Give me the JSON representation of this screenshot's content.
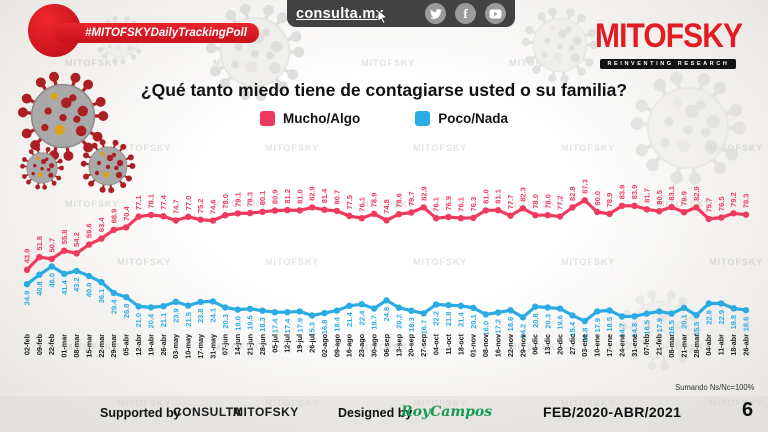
{
  "watermark": "MITOFSKY",
  "header": {
    "hashtag": "#MITOFSKYDailyTrackingPoll",
    "site": "consulta.mx",
    "logo": {
      "text": "MITOFSKY",
      "tagline": "REINVENTING RESEARCH"
    }
  },
  "chart_data": {
    "type": "line",
    "title": "¿Qué tanto miedo tiene de contagiarse usted o su familia?",
    "note": "Sumando Ns/Nc=100%",
    "ylim": [
      0,
      100
    ],
    "grid": false,
    "axes_visible": false,
    "legend_position": "top",
    "categories": [
      "02-feb",
      "09-feb",
      "22-feb",
      "01-mar",
      "08-mar",
      "15-mar",
      "22-mar",
      "29-mar",
      "05-abr",
      "12-abr",
      "19-abr",
      "26-abr",
      "03-may",
      "10-may",
      "17-may",
      "31-may",
      "07-jun",
      "14-jun",
      "21-jun",
      "28-jun",
      "05-jul",
      "12-jul",
      "19-jul",
      "26-jul",
      "02-ago",
      "09-ago",
      "16-ago",
      "23-ago",
      "30-ago",
      "06-sep",
      "13-sep",
      "20-sep",
      "27-sep",
      "04-oct",
      "11-oct",
      "18-oct",
      "01-nov",
      "08-nov",
      "16-nov",
      "22-nov",
      "29-nov",
      "06-dic",
      "13-dic",
      "20-dic",
      "27-dic",
      "03-ene",
      "10-ene",
      "17-ene",
      "24-ene",
      "31-ene",
      "07-feb",
      "21-feb",
      "08-mar",
      "21-mar",
      "28-mar",
      "04-abr",
      "11-abr",
      "18-abr",
      "26-abr"
    ],
    "series": [
      {
        "name": "Mucho/Algo",
        "color": "#f0395f",
        "values": [
          43.9,
          51.8,
          50.7,
          55.8,
          54.2,
          59.6,
          63.4,
          68.9,
          70.4,
          77.1,
          78.1,
          77.4,
          74.7,
          77.0,
          75.2,
          74.6,
          78.0,
          79.1,
          79.3,
          80.1,
          80.9,
          81.2,
          81.0,
          82.9,
          81.4,
          80.7,
          77.5,
          76.1,
          78.9,
          74.8,
          78.6,
          79.7,
          82.9,
          76.1,
          76.9,
          76.1,
          76.3,
          81.0,
          81.1,
          77.7,
          82.3,
          78.0,
          78.0,
          77.2,
          82.8,
          87.3,
          80.0,
          78.9,
          83.9,
          83.9,
          81.7,
          80.5,
          83.1,
          79.9,
          82.9,
          75.7,
          76.5,
          79.2,
          78.3
        ]
      },
      {
        "name": "Poco/Nada",
        "color": "#2aabe3",
        "values": [
          34.9,
          40.8,
          46.0,
          41.4,
          43.2,
          40.0,
          36.1,
          29.4,
          26.8,
          21.0,
          20.4,
          21.1,
          23.9,
          21.5,
          23.8,
          24.1,
          20.3,
          19.0,
          19.5,
          18.3,
          17.4,
          17.4,
          17.9,
          15.3,
          16.8,
          18.4,
          21.4,
          22.4,
          19.7,
          24.8,
          20.2,
          18.3,
          16.7,
          22.2,
          21.8,
          21.4,
          20.1,
          16.0,
          17.2,
          18.6,
          14.2,
          20.8,
          20.3,
          19.6,
          15.4,
          11.8,
          17.9,
          18.5,
          14.7,
          14.8,
          16.5,
          17.9,
          16.5,
          20.1,
          15.5,
          22.8,
          22.9,
          19.8,
          18.6
        ]
      }
    ]
  },
  "footer": {
    "supported_by_label": "Supported by",
    "brand1": "CONSULTA",
    "brand2": "MITOFSKY",
    "designed_by_label": "Designed by",
    "designer": "RoyCampos",
    "period": "FEB/2020-ABR/2021",
    "page_number": "6"
  },
  "colors": {
    "accent_red": "#e31b22",
    "series_red": "#f0395f",
    "series_blue": "#2aabe3",
    "bar_dark": "#424242",
    "designer_green": "#169a4f"
  }
}
